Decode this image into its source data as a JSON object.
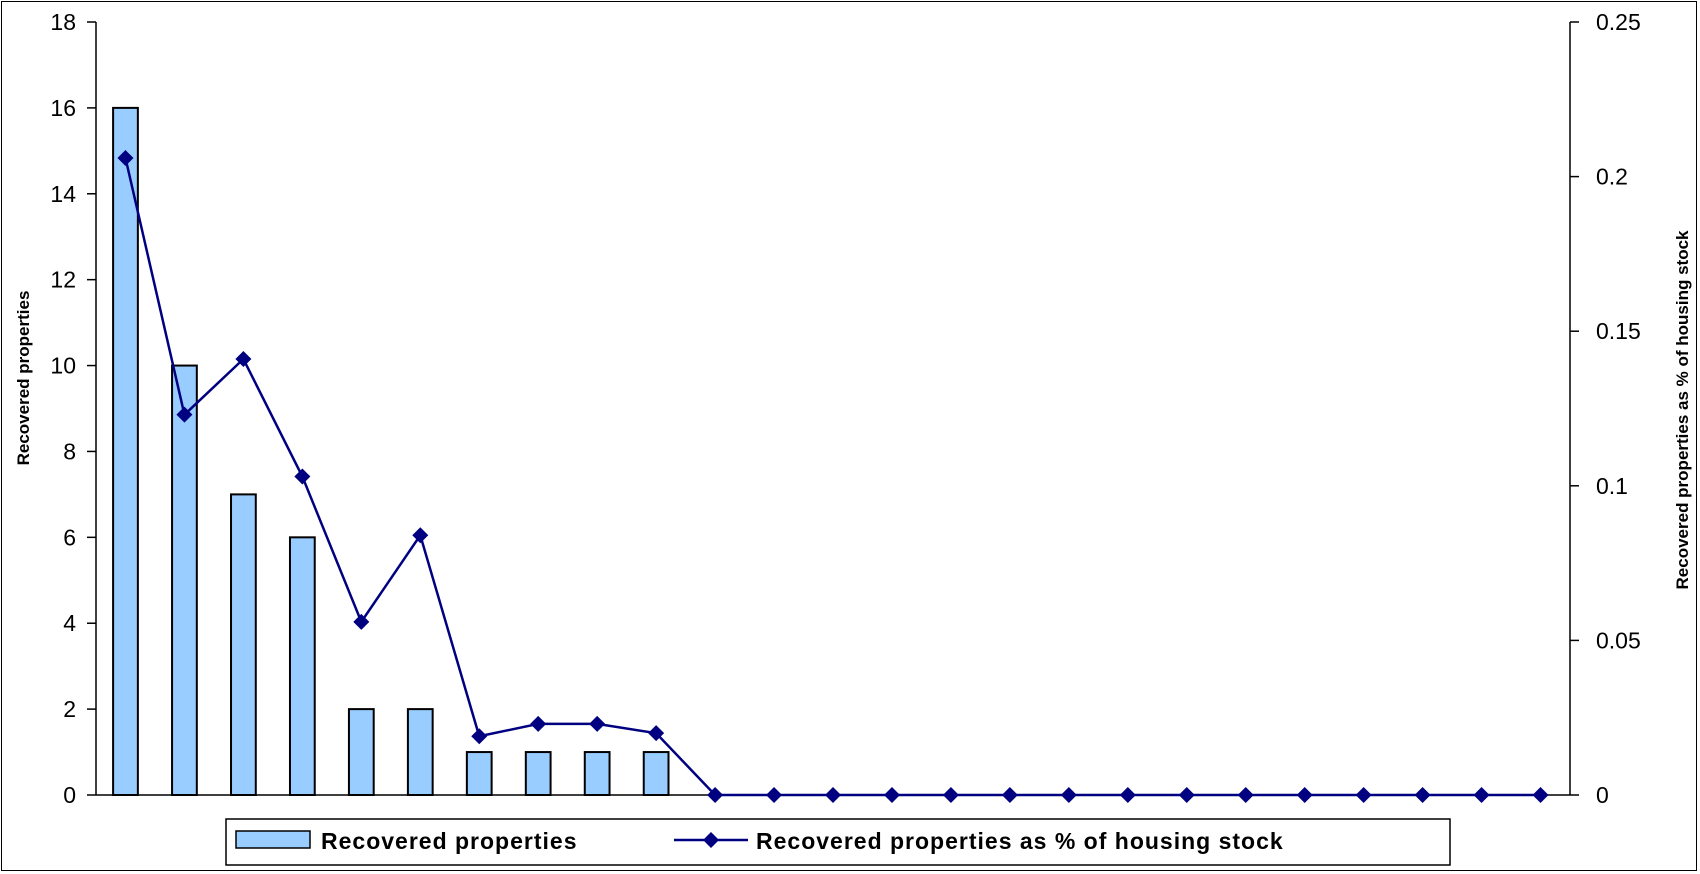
{
  "chart_data": {
    "type": "bar",
    "categories_count": 25,
    "series": [
      {
        "name": "Recovered properties",
        "type": "bar",
        "axis": "left",
        "values": [
          16,
          10,
          7,
          6,
          2,
          2,
          1,
          1,
          1,
          1
        ]
      },
      {
        "name": "Recovered properties as % of housing stock",
        "type": "line",
        "axis": "right",
        "marker": "diamond",
        "values": [
          0.206,
          0.123,
          0.141,
          0.103,
          0.056,
          0.084,
          0.019,
          0.023,
          0.023,
          0.02,
          0,
          0,
          0,
          0,
          0,
          0,
          0,
          0,
          0,
          0,
          0,
          0,
          0,
          0,
          0
        ]
      }
    ],
    "y_left": {
      "label": "Recovered properties",
      "ylim": [
        0,
        18
      ],
      "ticks": [
        "0",
        "2",
        "4",
        "6",
        "8",
        "10",
        "12",
        "14",
        "16",
        "18"
      ]
    },
    "y_right": {
      "label": "Recovered properties as % of housing stock",
      "ylim": [
        0,
        0.25
      ],
      "ticks": [
        "0",
        "0.05",
        "0.1",
        "0.15",
        "0.2",
        "0.25"
      ]
    },
    "legend_position": "bottom",
    "grid": false,
    "colors": {
      "bar_fill": "#99CCFF",
      "bar_stroke": "#000000",
      "line": "#000080"
    }
  }
}
